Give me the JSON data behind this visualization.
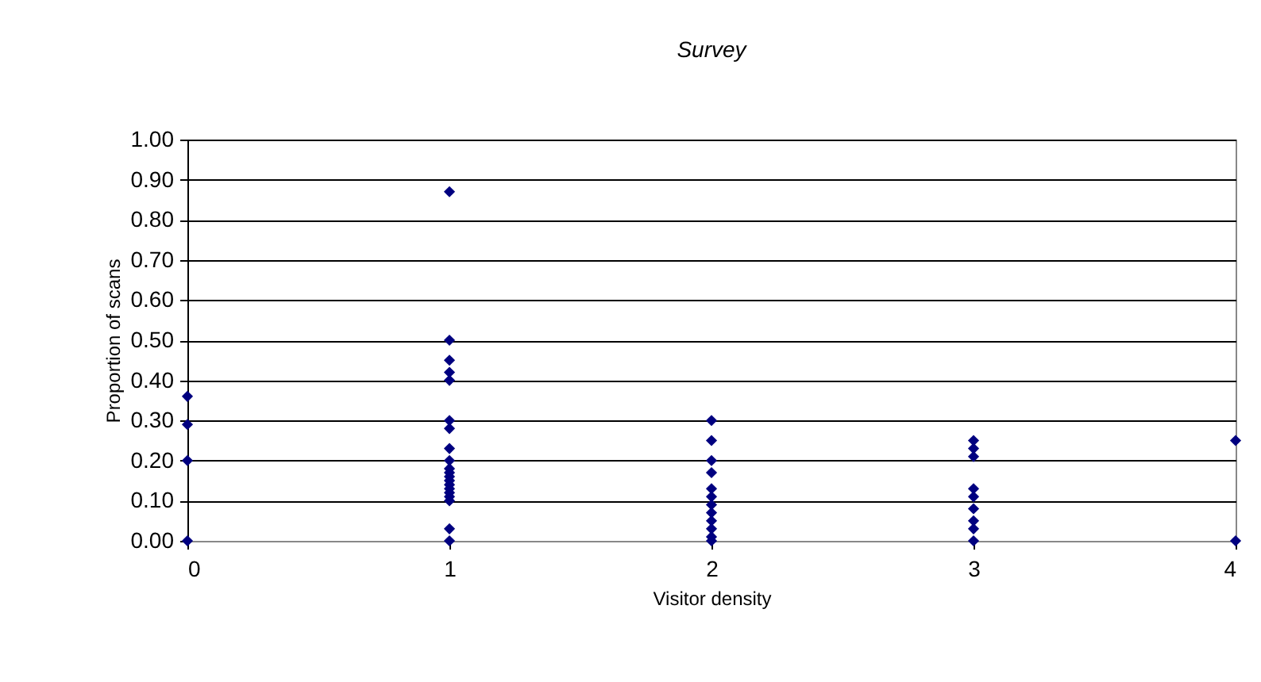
{
  "chart_data": {
    "type": "scatter",
    "title": "Survey",
    "xlabel": "Visitor density",
    "ylabel": "Proportion of scans",
    "x": [
      0,
      0,
      0,
      0,
      1,
      1,
      1,
      1,
      1,
      1,
      1,
      1,
      1,
      1,
      1,
      1,
      1,
      1,
      1,
      1,
      1,
      1,
      1,
      1,
      2,
      2,
      2,
      2,
      2,
      2,
      2,
      2,
      2,
      2,
      2,
      2,
      3,
      3,
      3,
      3,
      3,
      3,
      3,
      3,
      3,
      4,
      4
    ],
    "series": [
      {
        "color": "#000080",
        "values": [
          0.36,
          0.29,
          0.2,
          0.0,
          0.87,
          0.5,
          0.45,
          0.42,
          0.4,
          0.3,
          0.28,
          0.23,
          0.2,
          0.18,
          0.17,
          0.16,
          0.15,
          0.14,
          0.13,
          0.12,
          0.11,
          0.1,
          0.03,
          0.0,
          0.3,
          0.25,
          0.2,
          0.17,
          0.13,
          0.11,
          0.09,
          0.07,
          0.05,
          0.03,
          0.01,
          0.0,
          0.25,
          0.23,
          0.21,
          0.13,
          0.11,
          0.08,
          0.05,
          0.03,
          0.0,
          0.25,
          0.0
        ]
      }
    ],
    "xlim": [
      0,
      4
    ],
    "xticks": [
      0,
      1,
      2,
      3,
      4
    ],
    "ylim": [
      0,
      1
    ],
    "yticks": [
      {
        "value": 0,
        "label": "0.00"
      },
      {
        "value": 0.1,
        "label": "0.10"
      },
      {
        "value": 0.2,
        "label": "0.20"
      },
      {
        "value": 0.3,
        "label": "0.30"
      },
      {
        "value": 0.4,
        "label": "0.40"
      },
      {
        "value": 0.5,
        "label": "0.50"
      },
      {
        "value": 0.6,
        "label": "0.60"
      },
      {
        "value": 0.7,
        "label": "0.70"
      },
      {
        "value": 0.8,
        "label": "0.80"
      },
      {
        "value": 0.9,
        "label": "0.90"
      },
      {
        "value": 1,
        "label": "1.00"
      }
    ],
    "grid": "y",
    "marker": "diamond"
  }
}
